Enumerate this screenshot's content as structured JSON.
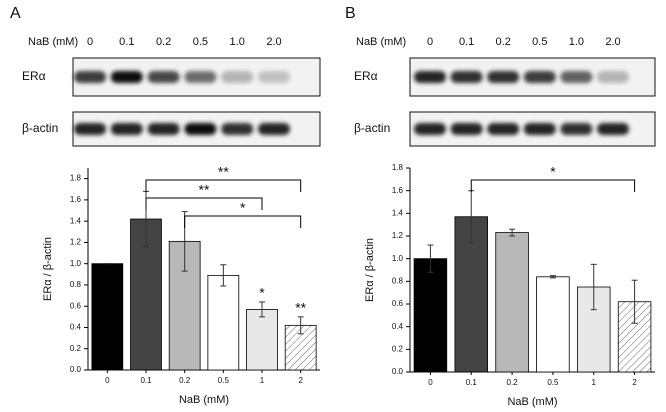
{
  "chart_data": [
    {
      "type": "bar",
      "panel": "A",
      "blot": {
        "header": "NaB (mM)",
        "lanes": [
          "0",
          "0.1",
          "0.2",
          "0.5",
          "1.0",
          "2.0"
        ],
        "rows": [
          "ERα",
          "β-actin"
        ]
      },
      "xlabel": "NaB (mM)",
      "ylabel": "ERα / β-actin",
      "categories": [
        "0",
        "0.1",
        "0.2",
        "0.5",
        "1",
        "2"
      ],
      "values": [
        1.0,
        1.42,
        1.21,
        0.89,
        0.57,
        0.42
      ],
      "errors": [
        0,
        0.26,
        0.28,
        0.1,
        0.07,
        0.08
      ],
      "colors": [
        "#000000",
        "#444444",
        "#b8b8b8",
        "#ffffff",
        "#e8e8e8",
        "#ffffff"
      ],
      "hatch": "2",
      "star_labels": [
        null,
        null,
        null,
        null,
        "*",
        "**"
      ],
      "brackets": [
        {
          "from": "0.1",
          "to": "2",
          "label": "**"
        },
        {
          "from": "0.1",
          "to": "1",
          "label": "**"
        },
        {
          "from": "0.2",
          "to": "2",
          "label": "*"
        }
      ],
      "ylim": [
        0,
        1.9
      ],
      "yticks": [
        {
          "value": 0,
          "label": "0.0"
        },
        0.2,
        0.4,
        0.6,
        0.8,
        {
          "value": 1,
          "label": "1.0"
        },
        1.2,
        1.4,
        1.6,
        1.8
      ]
    },
    {
      "type": "bar",
      "panel": "B",
      "blot": {
        "header": "NaB (mM)",
        "lanes": [
          "0",
          "0.1",
          "0.2",
          "0.5",
          "1.0",
          "2.0"
        ],
        "rows": [
          "ERα",
          "β-actin"
        ]
      },
      "xlabel": "NaB (mM)",
      "ylabel": "ERα / β-actin",
      "categories": [
        "0",
        "0.1",
        "0.2",
        "0.5",
        "1",
        "2"
      ],
      "values": [
        1.0,
        1.37,
        1.23,
        0.84,
        0.75,
        0.62
      ],
      "errors": [
        0.12,
        0.23,
        0.03,
        0.01,
        0.2,
        0.19
      ],
      "colors": [
        "#000000",
        "#444444",
        "#b8b8b8",
        "#ffffff",
        "#e8e8e8",
        "#ffffff"
      ],
      "hatch": "2",
      "star_labels": [
        null,
        null,
        null,
        null,
        null,
        null
      ],
      "brackets": [
        {
          "from": "0.1",
          "to": "2",
          "label": "*"
        }
      ],
      "ylim": [
        0,
        1.8
      ],
      "yticks": [
        {
          "value": 0,
          "label": "0.0"
        },
        0.2,
        0.4,
        0.6,
        0.8,
        {
          "value": 1,
          "label": "1.0"
        },
        1.2,
        1.4,
        1.6,
        1.8
      ]
    }
  ]
}
